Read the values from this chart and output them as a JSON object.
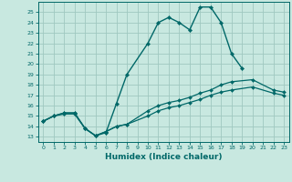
{
  "xlabel": "Humidex (Indice chaleur)",
  "bg_color": "#c8e8e0",
  "grid_color": "#a0c8c0",
  "line_color": "#006868",
  "xlim": [
    -0.5,
    23.5
  ],
  "ylim": [
    12.5,
    26.0
  ],
  "yticks": [
    13,
    14,
    15,
    16,
    17,
    18,
    19,
    20,
    21,
    22,
    23,
    24,
    25
  ],
  "xticks": [
    0,
    1,
    2,
    3,
    4,
    5,
    6,
    7,
    8,
    9,
    10,
    11,
    12,
    13,
    14,
    15,
    16,
    17,
    18,
    19,
    20,
    21,
    22,
    23
  ],
  "line1_x": [
    0,
    1,
    2,
    3,
    4,
    5,
    6,
    7,
    8,
    10,
    11,
    12,
    13,
    14,
    15,
    16,
    17,
    18,
    19
  ],
  "line1_y": [
    14.5,
    15.0,
    15.2,
    15.2,
    13.8,
    13.1,
    13.4,
    16.2,
    19.0,
    22.0,
    24.0,
    24.5,
    24.0,
    23.3,
    25.5,
    25.5,
    24.0,
    21.0,
    19.6
  ],
  "line2_x": [
    0,
    1,
    2,
    3,
    4,
    5,
    6,
    7,
    8,
    10,
    11,
    12,
    13,
    14,
    15,
    16,
    17,
    18,
    20,
    22,
    23
  ],
  "line2_y": [
    14.5,
    15.0,
    15.3,
    15.3,
    13.8,
    13.1,
    13.5,
    14.0,
    14.2,
    15.5,
    16.0,
    16.3,
    16.5,
    16.8,
    17.2,
    17.5,
    18.0,
    18.3,
    18.5,
    17.5,
    17.3
  ],
  "line3_x": [
    0,
    1,
    2,
    3,
    4,
    5,
    6,
    7,
    8,
    10,
    11,
    12,
    13,
    14,
    15,
    16,
    17,
    18,
    20,
    22,
    23
  ],
  "line3_y": [
    14.5,
    15.0,
    15.3,
    15.3,
    13.8,
    13.1,
    13.5,
    14.0,
    14.2,
    15.0,
    15.5,
    15.8,
    16.0,
    16.3,
    16.6,
    17.0,
    17.3,
    17.5,
    17.8,
    17.2,
    17.0
  ]
}
